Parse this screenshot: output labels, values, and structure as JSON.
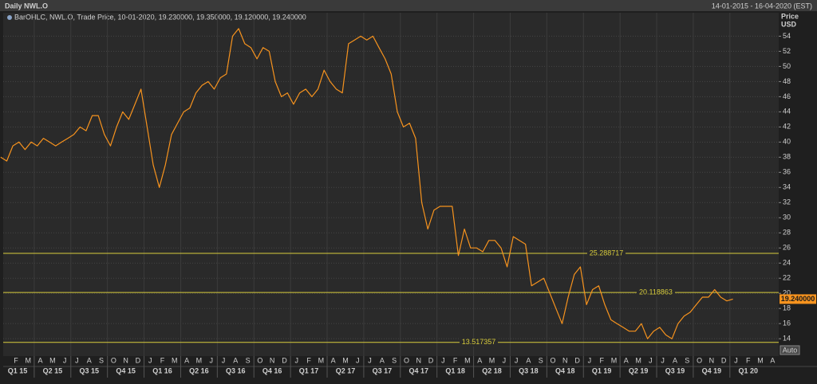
{
  "chart_data": {
    "type": "line",
    "title": "Daily NWL.O",
    "date_range": "14-01-2015 - 16-04-2020 (EST)",
    "legend_text": "BarOHLC, NWL.O, Trade Price, 10-01-2020, 19.230000, 19.350000, 19.120000, 19.240000",
    "y_axis_label": "Price",
    "y_axis_unit": "USD",
    "button": "Auto",
    "categories": [
      null,
      null,
      "F",
      null,
      "M",
      null,
      "A",
      null,
      "M",
      null,
      "J",
      null,
      "J",
      null,
      "A",
      null,
      "S",
      null,
      "O",
      null,
      "N",
      null,
      "D",
      null,
      "J",
      null,
      "F",
      null,
      "M",
      null,
      "A",
      null,
      "M",
      null,
      "J",
      null,
      "J",
      null,
      "A",
      null,
      "S",
      null,
      "O",
      null,
      "N",
      null,
      "D",
      null,
      "J",
      null,
      "F",
      null,
      "M",
      null,
      "A",
      null,
      "M",
      null,
      "J",
      null,
      "J",
      null,
      "A",
      null,
      "S",
      null,
      "O",
      null,
      "N",
      null,
      "D",
      null,
      "J",
      null,
      "F",
      null,
      "M",
      null,
      "A",
      null,
      "M",
      null,
      "J",
      null,
      "J",
      null,
      "A",
      null,
      "S",
      null,
      "O",
      null,
      "N",
      null,
      "D",
      null,
      "J",
      null,
      "F",
      null,
      "M",
      null,
      "A",
      null,
      "M",
      null,
      "J",
      null,
      "J",
      null,
      "A",
      null,
      "S",
      null,
      "O",
      null,
      "N",
      null,
      "D",
      null,
      "J",
      null,
      "F",
      null,
      "M",
      null,
      "A",
      null
    ],
    "quarters": [
      "Q1 15",
      "Q2 15",
      "Q3 15",
      "Q4 15",
      "Q1 16",
      "Q2 16",
      "Q3 16",
      "Q4 16",
      "Q1 17",
      "Q2 17",
      "Q3 17",
      "Q4 17",
      "Q1 18",
      "Q2 18",
      "Q3 18",
      "Q4 18",
      "Q1 19",
      "Q2 19",
      "Q3 19",
      "Q4 19",
      "Q1 20"
    ],
    "series": [
      {
        "name": "NWL.O",
        "color": "#f7931e",
        "values": [
          38,
          37.5,
          39.5,
          40,
          39,
          40,
          39.5,
          40.5,
          40,
          39.5,
          40,
          40.5,
          41,
          42,
          41.5,
          43.5,
          43.5,
          41,
          39.5,
          42,
          44,
          43,
          45,
          47,
          42,
          37,
          34,
          37,
          41,
          42.5,
          44,
          44.5,
          46.5,
          47.5,
          48,
          47,
          48.5,
          49,
          54,
          55,
          53,
          52.5,
          51,
          52.5,
          52,
          48,
          46,
          46.5,
          45,
          46.5,
          47,
          46,
          47,
          49.5,
          48,
          47,
          46.5,
          53,
          53.5,
          54,
          53.5,
          54,
          52.5,
          51,
          49,
          44,
          42,
          42.5,
          40.5,
          32,
          28.5,
          31,
          31.5,
          31.5,
          31.5,
          25,
          28.5,
          26,
          26,
          25.5,
          27,
          27,
          26,
          23.5,
          27.5,
          27,
          26.5,
          21,
          21.5,
          22,
          20,
          18,
          16,
          19.5,
          22.5,
          23.5,
          18.5,
          20.5,
          21,
          18.5,
          16.5,
          16,
          15.5,
          15,
          15,
          16,
          14,
          15,
          15.5,
          14.5,
          14,
          16,
          17,
          17.5,
          18.5,
          19.5,
          19.5,
          20.5,
          19.5,
          19,
          19.24,
          null,
          null,
          null,
          null,
          null,
          null,
          null
        ]
      }
    ],
    "hlines": [
      25.288717,
      20.118863,
      13.517357
    ],
    "last_price": {
      "value": 19.24,
      "label": "19.240000"
    },
    "ylim": [
      11.7,
      57.1
    ],
    "yticks": [
      14,
      16,
      18,
      20,
      22,
      24,
      26,
      28,
      30,
      32,
      34,
      36,
      38,
      40,
      42,
      44,
      46,
      48,
      50,
      52,
      54
    ],
    "grid": true,
    "hline_color": "#d8cc3c"
  }
}
